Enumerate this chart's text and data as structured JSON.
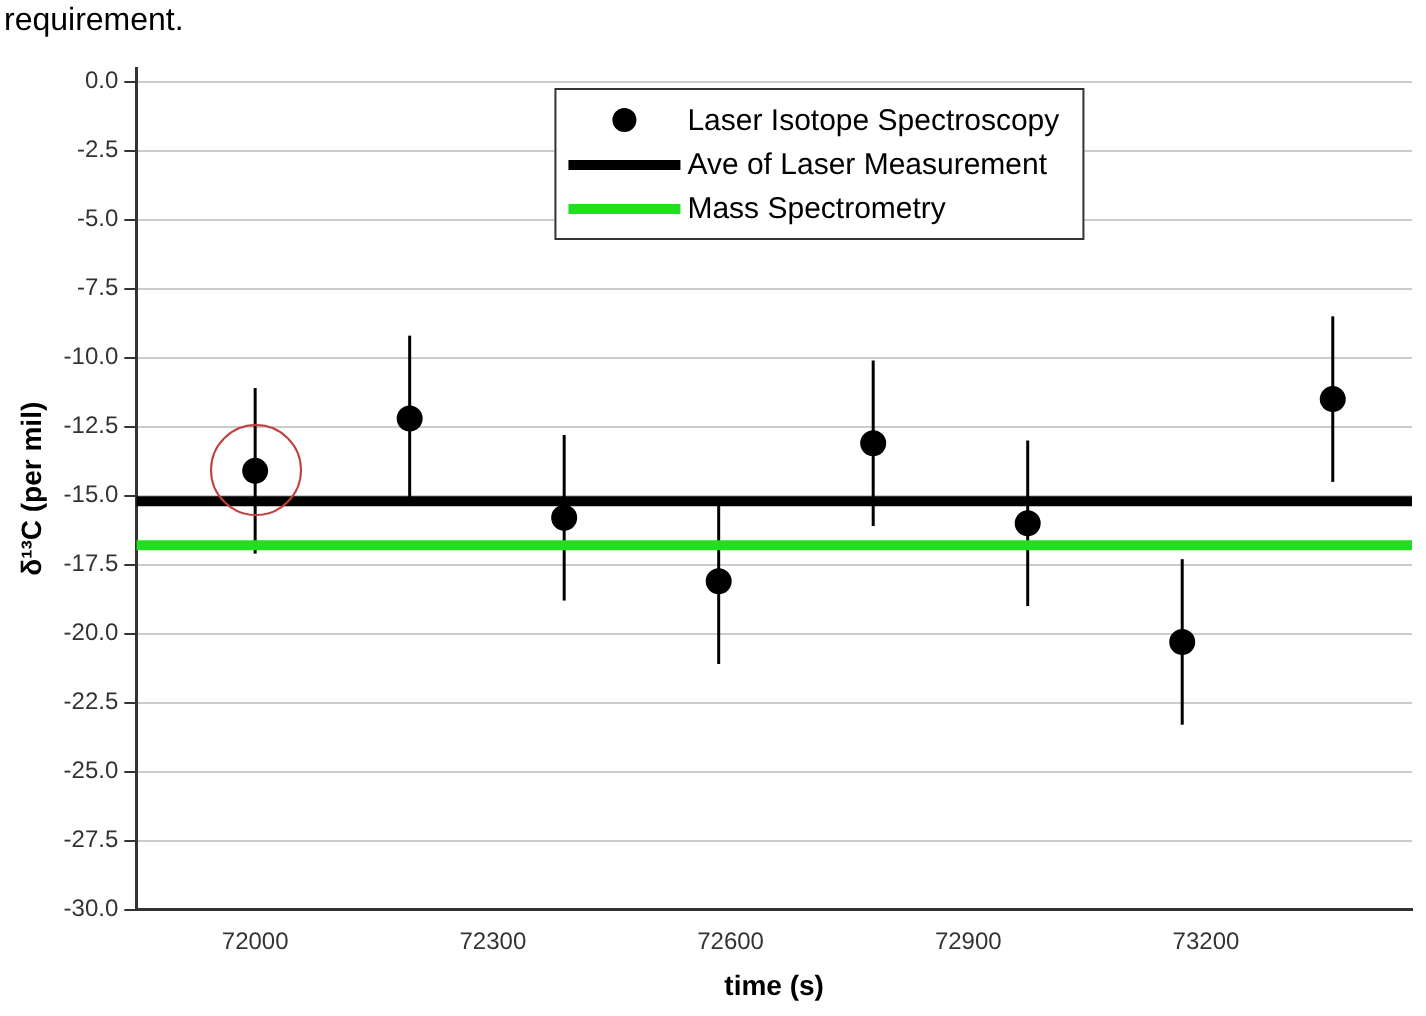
{
  "chart_data": {
    "type": "scatter",
    "xlabel": "time (s)",
    "ylabel": "δ¹³C (per mil)",
    "annotations": [
      "requirement."
    ],
    "xlim": [
      71850,
      73460
    ],
    "xticks": [
      72000,
      72300,
      72600,
      72900,
      73200
    ],
    "ylim": [
      -30,
      0.5
    ],
    "yticks": [
      {
        "value": 0,
        "label": "0.0"
      },
      {
        "value": -2.5,
        "label": "-2.5"
      },
      {
        "value": -5,
        "label": "-5.0"
      },
      {
        "value": -7.5,
        "label": "-7.5"
      },
      {
        "value": -10,
        "label": "-10.0"
      },
      {
        "value": -12.5,
        "label": "-12.5"
      },
      {
        "value": -15,
        "label": "-15.0"
      },
      {
        "value": -17.5,
        "label": "-17.5"
      },
      {
        "value": -20,
        "label": "-20.0"
      },
      {
        "value": -22.5,
        "label": "-22.5"
      },
      {
        "value": -25,
        "label": "-25.0"
      },
      {
        "value": -27.5,
        "label": "-27.5"
      },
      {
        "value": -30,
        "label": "-30.0"
      }
    ],
    "grid": "y",
    "legend": "top",
    "marker": "circle",
    "series": [
      {
        "name": "Laser Isotope Spectroscopy",
        "color": "#000000",
        "x": [
          72000,
          72195,
          72390,
          72585,
          72780,
          72975,
          73170,
          73360
        ],
        "values": [
          -14.1,
          -12.2,
          -15.8,
          -18.1,
          -13.1,
          -16.0,
          -20.3,
          -11.5
        ],
        "errors": [
          3.0,
          3.0,
          3.0,
          3.0,
          3.0,
          3.0,
          3.0,
          3.0
        ]
      },
      {
        "name": "Ave of Laser Measurement",
        "type": "line",
        "marker": "none",
        "color": "#000000",
        "x": [
          71850,
          73460
        ],
        "values": [
          -15.2,
          -15.2
        ]
      },
      {
        "name": "Mass Spectrometry",
        "type": "line",
        "marker": "none",
        "color": "#22dd22",
        "x": [
          71850,
          73460
        ],
        "values": [
          -16.8,
          -16.8
        ]
      }
    ]
  }
}
